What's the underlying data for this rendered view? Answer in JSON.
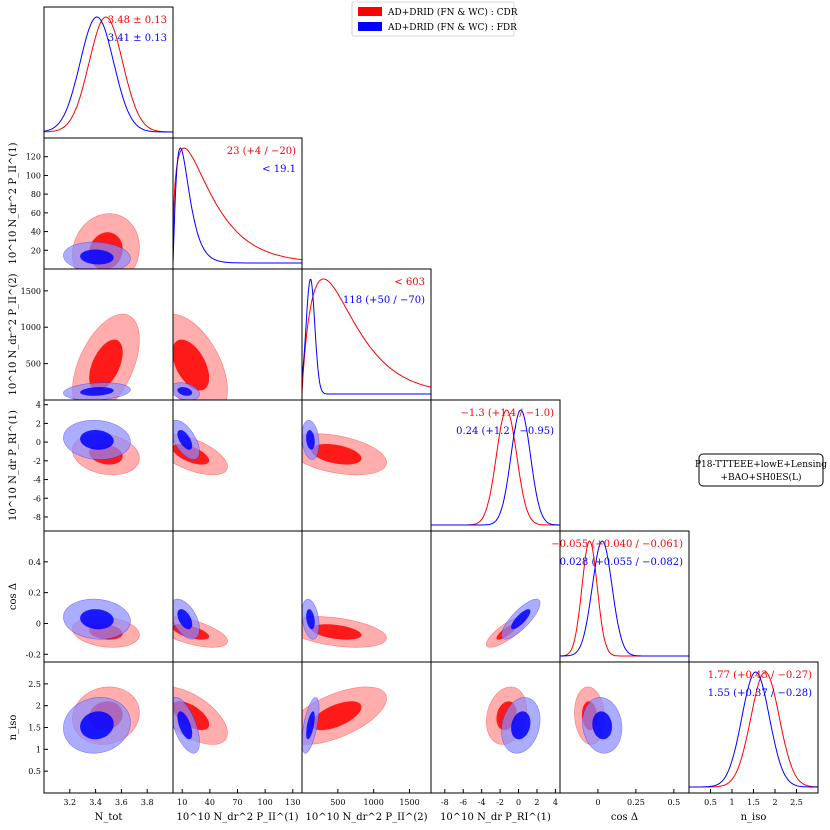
{
  "chart_data": {
    "type": "corner-plot",
    "legend": {
      "placement": "top-center",
      "entries": [
        {
          "label": "AD+DRID (FN & WC) : CDR",
          "color": "#ff0000"
        },
        {
          "label": "AD+DRID (FN & WC) : FDR",
          "color": "#0000ff"
        }
      ]
    },
    "dataset_label": "P18-TTTEEE+lowE+Lensing\n+BAO+SH0ES(L)",
    "parameters": [
      {
        "name": "N_tot",
        "label": "N_tot",
        "range": [
          3.0,
          4.0
        ],
        "ticks": [
          3.2,
          3.4,
          3.6,
          3.8
        ]
      },
      {
        "name": "Pii1",
        "label": "10^10 N_dr^2 P_II^(1)",
        "range": [
          0,
          140
        ],
        "ticks": [
          10,
          40,
          70,
          100,
          130
        ],
        "ticks_y": [
          20,
          40,
          60,
          80,
          100,
          120
        ]
      },
      {
        "name": "Pii2",
        "label": "10^10 N_dr^2 P_II^(2)",
        "range": [
          0,
          1800
        ],
        "ticks": [
          500,
          1000,
          1500
        ]
      },
      {
        "name": "PRI1",
        "label": "10^10 N_dr P_RI^(1)",
        "range": [
          -9.5,
          4.5
        ],
        "ticks": [
          -8,
          -6,
          -4,
          -2,
          0,
          2,
          4
        ]
      },
      {
        "name": "cosD",
        "label": "cos Δ",
        "range": [
          -0.25,
          0.6
        ],
        "ticks": [
          0.0,
          0.25,
          0.5
        ],
        "ticks_y": [
          -0.2,
          0.0,
          0.2,
          0.4
        ]
      },
      {
        "name": "niso",
        "label": "n_iso",
        "range": [
          0.0,
          3.0
        ],
        "ticks": [
          0.5,
          1.0,
          1.5,
          2.0,
          2.5
        ]
      }
    ],
    "series": [
      {
        "name": "AD+DRID (FN & WC) : CDR",
        "color": "#ff0000",
        "summaries": [
          "3.48 ± 0.13",
          "23 (+4 / −20)",
          "< 603",
          "−1.3 (+1.4 / −1.0)",
          "−0.055 (+0.040 / −0.061)",
          "1.77 (+0.43 / −0.27)"
        ],
        "marginals": [
          {
            "mean": 3.48,
            "sigma": 0.13
          },
          {
            "mode": 12,
            "sigma": 20
          },
          {
            "mode": 300,
            "sigma": 350
          },
          {
            "mean": -1.3,
            "sigma": 1.1
          },
          {
            "mean": -0.055,
            "sigma": 0.05
          },
          {
            "mean": 1.77,
            "sigma": 0.33
          }
        ]
      },
      {
        "name": "AD+DRID (FN & WC) : FDR",
        "color": "#0000ff",
        "summaries": [
          "3.41 ± 0.13",
          "< 19.1",
          "118 (+50 / −70)",
          "0.24 (+1.2 / −0.95)",
          "0.028 (+0.055 / −0.082)",
          "1.55 (+0.37 / −0.28)"
        ],
        "marginals": [
          {
            "mean": 3.41,
            "sigma": 0.13
          },
          {
            "mode": 8,
            "sigma": 8
          },
          {
            "mean": 118,
            "sigma": 60
          },
          {
            "mean": 0.24,
            "sigma": 1.05
          },
          {
            "mean": 0.028,
            "sigma": 0.065
          },
          {
            "mean": 1.55,
            "sigma": 0.32
          }
        ]
      }
    ]
  }
}
